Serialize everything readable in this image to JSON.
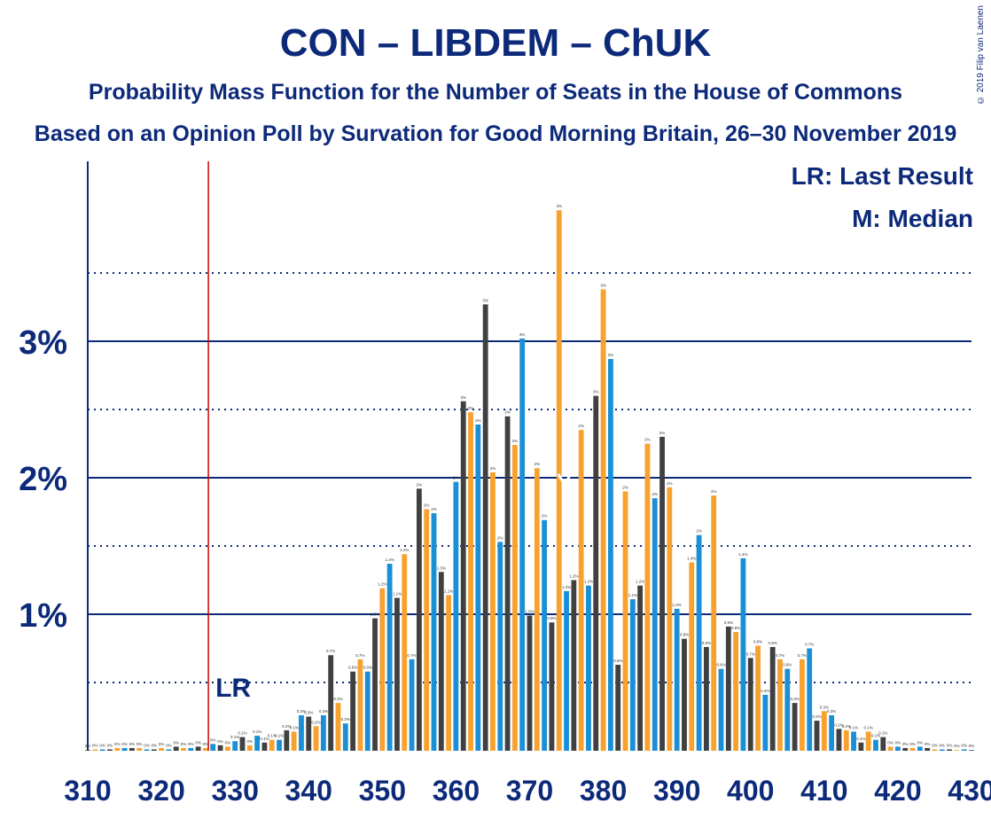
{
  "title": "CON – LIBDEM – ChUK",
  "subtitle": "Probability Mass Function for the Number of Seats in the House of Commons",
  "subtitle2": "Based on an Opinion Poll by Survation for Good Morning Britain, 26–30 November 2019",
  "copyright": "© 2019 Filip van Laenen",
  "legend": {
    "lr": "LR: Last Result",
    "m": "M: Median"
  },
  "lr_label": "LR",
  "median_label": "M",
  "colors": {
    "dark": "#404040",
    "orange": "#f7a12f",
    "blue": "#1a8fd6",
    "navy": "#0d2a7a",
    "red": "#d00000"
  },
  "chart_data": {
    "type": "bar",
    "x_start": 310,
    "x_end": 430,
    "ylim": [
      0,
      4.3
    ],
    "yticks": [
      {
        "v": 1,
        "label": "1%"
      },
      {
        "v": 2,
        "label": "2%"
      },
      {
        "v": 3,
        "label": "3%"
      }
    ],
    "xticks": [
      310,
      320,
      330,
      340,
      350,
      360,
      370,
      380,
      390,
      400,
      410,
      420,
      430
    ],
    "last_result": 326,
    "median": 374,
    "values": [
      0.005,
      0.01,
      0.01,
      0.01,
      0.02,
      0.02,
      0.02,
      0.02,
      0.01,
      0.01,
      0.02,
      0.01,
      0.03,
      0.02,
      0.02,
      0.03,
      0.02,
      0.05,
      0.04,
      0.03,
      0.07,
      0.1,
      0.04,
      0.11,
      0.06,
      0.08,
      0.08,
      0.15,
      0.14,
      0.26,
      0.25,
      0.18,
      0.26,
      0.7,
      0.35,
      0.2,
      0.58,
      0.67,
      0.58,
      0.97,
      1.19,
      1.37,
      1.12,
      1.44,
      0.67,
      1.92,
      1.77,
      1.74,
      1.31,
      1.14,
      1.97,
      2.56,
      2.48,
      2.39,
      3.27,
      2.04,
      1.53,
      2.45,
      2.24,
      3.02,
      0.99,
      2.07,
      1.69,
      0.94,
      3.96,
      1.17,
      1.25,
      2.35,
      1.21,
      2.6,
      3.38,
      2.87,
      0.63,
      1.9,
      1.11,
      1.21,
      2.25,
      1.85,
      2.3,
      1.93,
      1.04,
      0.82,
      1.38,
      1.58,
      0.76,
      1.87,
      0.6,
      0.91,
      0.87,
      1.41,
      0.68,
      0.77,
      0.41,
      0.76,
      0.67,
      0.6,
      0.35,
      0.67,
      0.75,
      0.22,
      0.29,
      0.26,
      0.16,
      0.15,
      0.14,
      0.06,
      0.14,
      0.08,
      0.1,
      0.03,
      0.03,
      0.02,
      0.02,
      0.03,
      0.02,
      0.01,
      0.01,
      0.01,
      0.005,
      0.01,
      0.005
    ],
    "data_labels": [
      "0%",
      "0%",
      "0%",
      "0%",
      "0%",
      "0%",
      "0%",
      "0%",
      "0%",
      "0%",
      "0%",
      "0%",
      "0%",
      "0%",
      "0%",
      "0%",
      "0%",
      "0%",
      "0%",
      "0%",
      "0.1%",
      "0.1%",
      "0%",
      "0.1%",
      "0.1%",
      "0.1%",
      "0.1%",
      "0.2%",
      "0.1%",
      "0.3%",
      "0.3%",
      "0.2%",
      "0.3%",
      "0.7%",
      "0.4%",
      "0.2%",
      "0.6%",
      "0.7%",
      "0.6%",
      "1.0%",
      "1.2%",
      "1.4%",
      "1.1%",
      "1.4%",
      "0.7%",
      "2%",
      "2%",
      "2%",
      "1.3%",
      "1.1%",
      "2%",
      "3%",
      "2%",
      "2%",
      "3%",
      "2%",
      "2%",
      "2%",
      "2%",
      "3%",
      "1.0%",
      "2%",
      "2%",
      "0.9%",
      "4%",
      "1.2%",
      "1.2%",
      "2%",
      "1.2%",
      "3%",
      "3%",
      "3%",
      "0.6%",
      "2%",
      "1.1%",
      "1.2%",
      "2%",
      "2%",
      "2%",
      "2%",
      "1.0%",
      "0.8%",
      "1.4%",
      "2%",
      "0.8%",
      "2%",
      "0.6%",
      "0.9%",
      "0.9%",
      "1.4%",
      "0.7%",
      "0.8%",
      "0.4%",
      "0.8%",
      "0.7%",
      "0.6%",
      "0.3%",
      "0.7%",
      "0.7%",
      "0.2%",
      "0.3%",
      "0.3%",
      "0.2%",
      "0.2%",
      "0.1%",
      "0.1%",
      "0.1%",
      "0.1%",
      "0.1%",
      "0%",
      "0%",
      "0%",
      "0%",
      "0%",
      "0%",
      "0%",
      "0%",
      "0%",
      "0%",
      "0%",
      "0%"
    ]
  }
}
